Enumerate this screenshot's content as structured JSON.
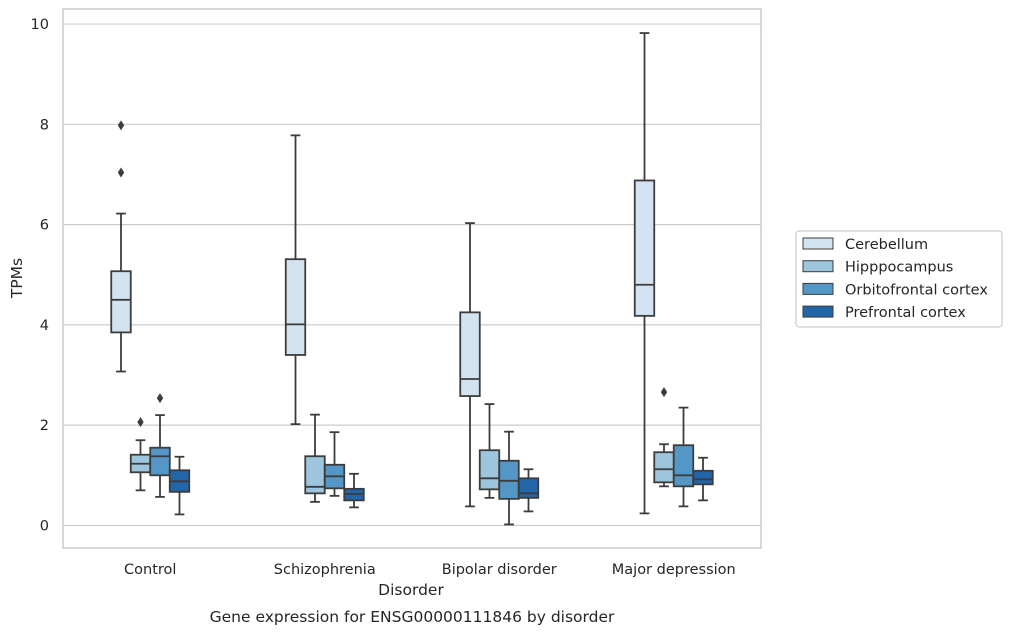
{
  "chart_data": {
    "type": "boxplot",
    "title": "Gene expression for ENSG00000111846 by disorder",
    "xlabel": "Disorder",
    "ylabel": "TPMs",
    "ylim": [
      -0.45,
      10.3
    ],
    "yticks": [
      0,
      2,
      4,
      6,
      8,
      10
    ],
    "grid": "horizontal",
    "legend_placement": "center-right",
    "categories": [
      "Control",
      "Schizophrenia",
      "Bipolar disorder",
      "Major depression"
    ],
    "series": [
      {
        "name": "Cerebellum",
        "color": "#d4e3f2",
        "boxes": [
          {
            "whisker_low": 3.07,
            "q1": 3.85,
            "median": 4.5,
            "q3": 5.07,
            "whisker_high": 6.22,
            "outliers": [
              7.04,
              7.98
            ]
          },
          {
            "whisker_low": 2.02,
            "q1": 3.4,
            "median": 4.01,
            "q3": 5.31,
            "whisker_high": 7.78,
            "outliers": []
          },
          {
            "whisker_low": 0.38,
            "q1": 2.58,
            "median": 2.92,
            "q3": 4.25,
            "whisker_high": 6.03,
            "outliers": []
          },
          {
            "whisker_low": 0.24,
            "q1": 4.18,
            "median": 4.8,
            "q3": 6.88,
            "whisker_high": 9.82,
            "outliers": []
          }
        ]
      },
      {
        "name": "Hipppocampus",
        "color": "#9ec5de",
        "boxes": [
          {
            "whisker_low": 0.7,
            "q1": 1.06,
            "median": 1.23,
            "q3": 1.41,
            "whisker_high": 1.7,
            "outliers": [
              2.06
            ]
          },
          {
            "whisker_low": 0.47,
            "q1": 0.64,
            "median": 0.77,
            "q3": 1.38,
            "whisker_high": 2.21,
            "outliers": []
          },
          {
            "whisker_low": 0.55,
            "q1": 0.72,
            "median": 0.94,
            "q3": 1.5,
            "whisker_high": 2.42,
            "outliers": []
          },
          {
            "whisker_low": 0.78,
            "q1": 0.86,
            "median": 1.12,
            "q3": 1.46,
            "whisker_high": 1.62,
            "outliers": [
              2.66
            ]
          }
        ]
      },
      {
        "name": "Orbitofrontal cortex",
        "color": "#5497c6",
        "boxes": [
          {
            "whisker_low": 0.57,
            "q1": 1.0,
            "median": 1.38,
            "q3": 1.55,
            "whisker_high": 2.2,
            "outliers": [
              2.54
            ]
          },
          {
            "whisker_low": 0.59,
            "q1": 0.74,
            "median": 0.98,
            "q3": 1.21,
            "whisker_high": 1.86,
            "outliers": []
          },
          {
            "whisker_low": 0.02,
            "q1": 0.53,
            "median": 0.89,
            "q3": 1.29,
            "whisker_high": 1.87,
            "outliers": []
          },
          {
            "whisker_low": 0.38,
            "q1": 0.78,
            "median": 1.0,
            "q3": 1.6,
            "whisker_high": 2.35,
            "outliers": []
          }
        ]
      },
      {
        "name": "Prefrontal cortex",
        "color": "#2265a8",
        "boxes": [
          {
            "whisker_low": 0.22,
            "q1": 0.67,
            "median": 0.88,
            "q3": 1.1,
            "whisker_high": 1.37,
            "outliers": []
          },
          {
            "whisker_low": 0.36,
            "q1": 0.5,
            "median": 0.63,
            "q3": 0.73,
            "whisker_high": 1.03,
            "outliers": []
          },
          {
            "whisker_low": 0.28,
            "q1": 0.55,
            "median": 0.64,
            "q3": 0.94,
            "whisker_high": 1.12,
            "outliers": []
          },
          {
            "whisker_low": 0.5,
            "q1": 0.82,
            "median": 0.92,
            "q3": 1.09,
            "whisker_high": 1.35,
            "outliers": []
          }
        ]
      }
    ],
    "colors": {
      "box_edge": "#3c3c3c",
      "grid": "#cccccc",
      "axes_border": "#cccccc",
      "text": "#262626"
    }
  }
}
